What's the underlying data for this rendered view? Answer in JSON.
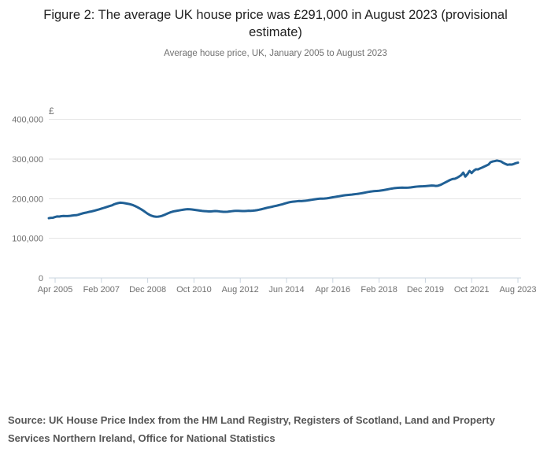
{
  "figure": {
    "title": "Figure 2: The average UK house price was £291,000 in August 2023 (provisional estimate)",
    "subtitle": "Average house price, UK, January 2005 to August 2023",
    "source": "Source: UK House Price Index from the HM Land Registry, Registers of Scotland, Land and Property Services Northern Ireland, Office for National Statistics"
  },
  "chart_data": {
    "type": "line",
    "title": "Figure 2: The average UK house price was £291,000 in August 2023 (provisional estimate)",
    "subtitle": "Average house price, UK, January 2005 to August 2023",
    "unit_label": "£",
    "xlabel": "",
    "ylabel": "",
    "ylim": [
      0,
      400000
    ],
    "yticks": [
      0,
      100000,
      200000,
      300000,
      400000
    ],
    "ytick_labels": [
      "0",
      "100,000",
      "200,000",
      "300,000",
      "400,000"
    ],
    "xtick_labels": [
      "Apr 2005",
      "Feb 2007",
      "Dec 2008",
      "Oct 2010",
      "Aug 2012",
      "Jun 2014",
      "Apr 2016",
      "Feb 2018",
      "Dec 2019",
      "Oct 2021",
      "Aug 2023"
    ],
    "xtick_month_index": [
      3,
      25,
      47,
      69,
      91,
      113,
      135,
      157,
      179,
      201,
      223
    ],
    "x_start": "Jan 2005",
    "x_end": "Aug 2023",
    "grid": "horizontal",
    "legend": "none",
    "line_color": "#206095",
    "series": [
      {
        "name": "Average UK house price (£), monthly from Jan 2005 to Aug 2023",
        "values": [
          150900,
          151800,
          152100,
          153800,
          155300,
          155000,
          155900,
          156400,
          156200,
          156100,
          156600,
          157400,
          158100,
          158400,
          159600,
          161200,
          162900,
          164200,
          165200,
          166600,
          167600,
          168900,
          170200,
          171800,
          173200,
          174900,
          176600,
          178300,
          180000,
          181600,
          183100,
          185800,
          187600,
          189000,
          190000,
          189600,
          188700,
          187800,
          186800,
          185500,
          183800,
          181500,
          178900,
          176100,
          173000,
          169600,
          165800,
          162100,
          159000,
          156800,
          155200,
          154500,
          154700,
          155600,
          157200,
          159300,
          161600,
          163900,
          166000,
          167600,
          168700,
          169600,
          170500,
          171500,
          172300,
          173100,
          173600,
          173400,
          172800,
          172100,
          171300,
          170600,
          169900,
          169200,
          168700,
          168300,
          167900,
          167800,
          168300,
          168800,
          168700,
          168000,
          167300,
          167000,
          166900,
          167200,
          167800,
          168500,
          169100,
          169500,
          169400,
          169100,
          168800,
          168900,
          169200,
          169600,
          169400,
          169800,
          170400,
          171200,
          172200,
          173400,
          174700,
          176100,
          177400,
          178500,
          179600,
          180900,
          182000,
          183300,
          184600,
          186000,
          187600,
          189200,
          190600,
          191700,
          192400,
          193000,
          193600,
          194200,
          194000,
          194400,
          194900,
          195600,
          196400,
          197300,
          198200,
          199000,
          199700,
          200100,
          200300,
          200500,
          200900,
          201700,
          202700,
          203600,
          204500,
          205300,
          206200,
          207200,
          208100,
          208800,
          209400,
          209900,
          210400,
          211000,
          211700,
          212400,
          213200,
          214100,
          215100,
          216200,
          217200,
          218000,
          218700,
          219200,
          219600,
          220100,
          220800,
          221600,
          222500,
          223500,
          224600,
          225600,
          226400,
          227000,
          227500,
          227800,
          227900,
          227800,
          227700,
          227900,
          228500,
          229200,
          230000,
          230600,
          231000,
          231200,
          231400,
          231800,
          232300,
          232800,
          233200,
          232900,
          232300,
          232800,
          234500,
          237000,
          239800,
          242600,
          245300,
          247800,
          249800,
          250300,
          252500,
          255900,
          259400,
          265700,
          255800,
          262000,
          270100,
          264700,
          270500,
          274300,
          274000,
          276500,
          278700,
          281100,
          283600,
          286200,
          292100,
          293900,
          294900,
          296200,
          295200,
          294000,
          290400,
          287800,
          285500,
          286300,
          286000,
          287500,
          289700,
          291000
        ]
      }
    ]
  }
}
